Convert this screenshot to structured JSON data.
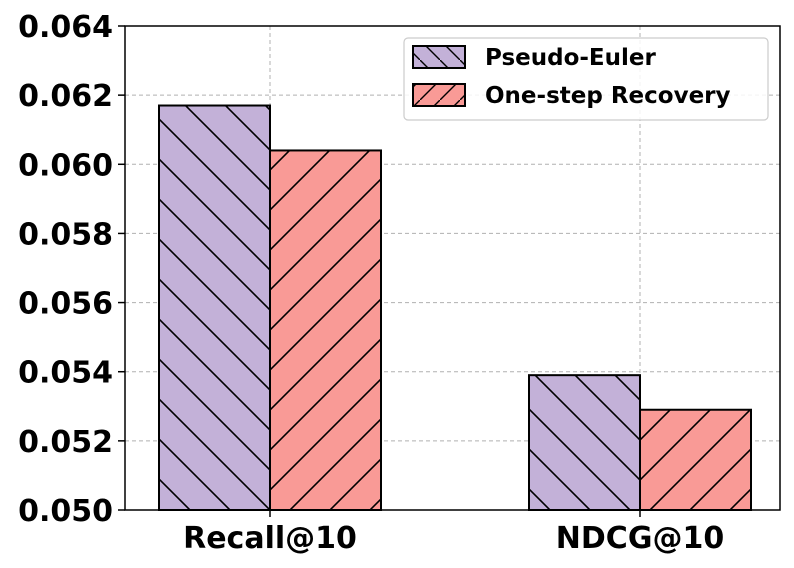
{
  "chart_data": {
    "type": "bar",
    "categories": [
      "Recall@10",
      "NDCG@10"
    ],
    "series": [
      {
        "name": "Pseudo-Euler",
        "values": [
          0.0617,
          0.0539
        ],
        "color": "#c3b1d8",
        "hatch": "backslash"
      },
      {
        "name": "One-step Recovery",
        "values": [
          0.0604,
          0.0529
        ],
        "color": "#f99a96",
        "hatch": "slash"
      }
    ],
    "ylim": [
      0.05,
      0.064
    ],
    "yticks": [
      "0.050",
      "0.052",
      "0.054",
      "0.056",
      "0.058",
      "0.060",
      "0.062",
      "0.064"
    ],
    "grid": true,
    "legend": "top-right",
    "title": "",
    "xlabel": "",
    "ylabel": ""
  }
}
